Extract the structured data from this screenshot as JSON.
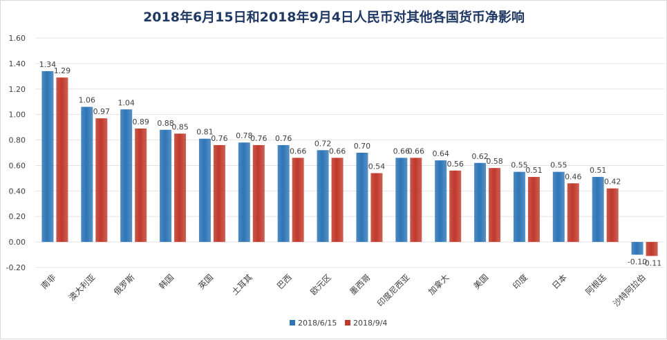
{
  "chart_data": {
    "type": "bar",
    "title": "2018年6月15日和2018年9月4日人民币对其他各国货币净影响",
    "xlabel": "",
    "ylabel": "",
    "ylim": [
      -0.2,
      1.6
    ],
    "yticks": [
      "-0.20",
      "0.00",
      "0.20",
      "0.40",
      "0.60",
      "0.80",
      "1.00",
      "1.20",
      "1.40",
      "1.60"
    ],
    "yticks_values": [
      -0.2,
      0,
      0.2,
      0.4,
      0.6,
      0.8,
      1.0,
      1.2,
      1.4,
      1.6
    ],
    "grid": true,
    "legend_position": "bottom",
    "categories": [
      "南非",
      "澳大利亚",
      "俄罗斯",
      "韩国",
      "英国",
      "土耳其",
      "巴西",
      "欧元区",
      "墨西哥",
      "印度尼西亚",
      "加拿大",
      "美国",
      "印度",
      "日本",
      "阿根廷",
      "沙特阿拉伯"
    ],
    "series": [
      {
        "name": "2018/6/15",
        "color": "#2e75b6",
        "values": [
          1.34,
          1.06,
          1.04,
          0.88,
          0.81,
          0.78,
          0.76,
          0.72,
          0.7,
          0.66,
          0.64,
          0.62,
          0.55,
          0.55,
          0.51,
          -0.1
        ],
        "labels": [
          "1.34",
          "1.06",
          "1.04",
          "0.88",
          "0.81",
          "0.78",
          "0.76",
          "0.72",
          "0.70",
          "0.66",
          "0.64",
          "0.62",
          "0.55",
          "0.55",
          "0.51",
          "-0.10"
        ]
      },
      {
        "name": "2018/9/4",
        "color": "#c0392b",
        "values": [
          1.29,
          0.97,
          0.89,
          0.85,
          0.76,
          0.76,
          0.66,
          0.66,
          0.54,
          0.66,
          0.56,
          0.58,
          0.51,
          0.46,
          0.42,
          -0.11
        ],
        "labels": [
          "1.29",
          "0.97",
          "0.89",
          "0.85",
          "0.76",
          "0.76",
          "0.66",
          "0.66",
          "0.54",
          "0.66",
          "0.56",
          "0.58",
          "0.51",
          "0.46",
          "0.42",
          "-0.11"
        ]
      }
    ]
  }
}
